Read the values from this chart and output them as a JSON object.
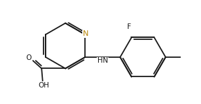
{
  "bg_color": "#ffffff",
  "bond_color": "#1a1a1a",
  "N_color": "#b8860b",
  "label_color": "#1a1a1a",
  "line_width": 1.3,
  "figsize": [
    2.91,
    1.51
  ],
  "dpi": 100,
  "font_size": 7.5,
  "xlim": [
    0.2,
    9.8
  ],
  "ylim": [
    2.2,
    7.2
  ]
}
